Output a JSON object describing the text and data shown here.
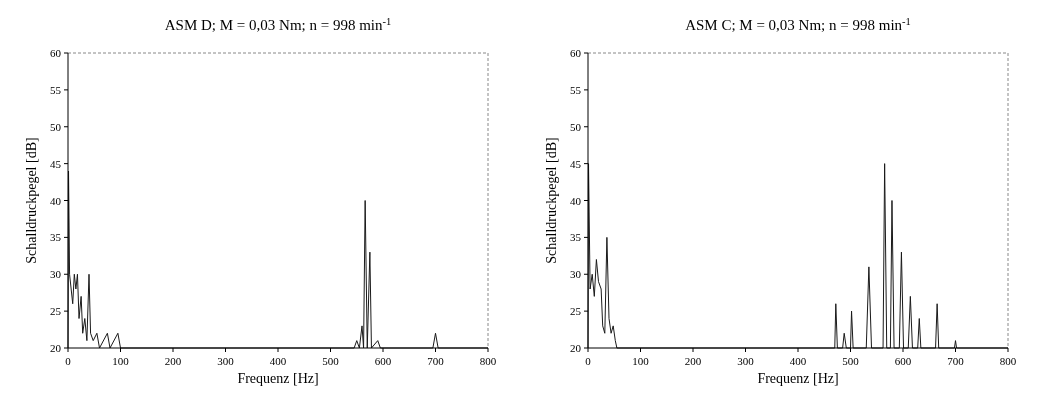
{
  "chart_data": [
    {
      "type": "line",
      "title": "ASM D; M = 0,03 Nm; n = 998 min$^{-1}$",
      "xlabel": "Frequenz [Hz]",
      "ylabel": "Schalldruckpegel [dB]",
      "xlim": [
        0,
        800
      ],
      "xticks": [
        0,
        100,
        200,
        300,
        400,
        500,
        600,
        700,
        800
      ],
      "ylim": [
        20,
        60
      ],
      "yticks": [
        20,
        25,
        30,
        35,
        40,
        45,
        50,
        55,
        60
      ],
      "grid": false,
      "marker": "none",
      "line_style": "solid",
      "series": [
        {
          "color": "#1a1a1a",
          "x": [
            0,
            1,
            3,
            6,
            9,
            12,
            15,
            18,
            21,
            25,
            28,
            32,
            36,
            40,
            43,
            48,
            55,
            60,
            75,
            80,
            95,
            100,
            545,
            550,
            555,
            560,
            563,
            566,
            570,
            575,
            578,
            590,
            595,
            695,
            700,
            705,
            800
          ],
          "values": [
            20,
            44,
            30,
            28,
            26,
            30,
            28,
            30,
            24,
            27,
            22,
            24,
            21,
            30,
            22,
            21,
            22,
            20,
            22,
            20,
            22,
            20,
            20,
            21,
            20,
            23,
            20,
            40,
            20,
            33,
            20,
            21,
            20,
            20,
            22,
            20,
            20
          ]
        }
      ]
    },
    {
      "type": "line",
      "title": "ASM C; M = 0,03 Nm; n = 998 min$^{-1}$",
      "xlabel": "Frequenz [Hz]",
      "ylabel": "Schalldruckpegel [dB]",
      "xlim": [
        0,
        800
      ],
      "xticks": [
        0,
        100,
        200,
        300,
        400,
        500,
        600,
        700,
        800
      ],
      "ylim": [
        20,
        60
      ],
      "yticks": [
        20,
        25,
        30,
        35,
        40,
        45,
        50,
        55,
        60
      ],
      "grid": false,
      "marker": "none",
      "line_style": "solid",
      "series": [
        {
          "color": "#1a1a1a",
          "x": [
            0,
            1,
            4,
            8,
            12,
            16,
            20,
            25,
            28,
            32,
            36,
            40,
            44,
            48,
            52,
            55,
            470,
            472,
            475,
            485,
            488,
            492,
            500,
            502,
            505,
            530,
            535,
            540,
            562,
            565,
            569,
            576,
            579,
            583,
            593,
            597,
            601,
            610,
            614,
            618,
            628,
            631,
            634,
            662,
            665,
            668,
            698,
            700,
            702,
            800
          ],
          "values": [
            20,
            45,
            28,
            30,
            27,
            32,
            29,
            28,
            23,
            22,
            35,
            24,
            22,
            23,
            21,
            20,
            20,
            26,
            20,
            20,
            22,
            20,
            20,
            25,
            20,
            20,
            31,
            20,
            20,
            45,
            20,
            20,
            40,
            20,
            20,
            33,
            20,
            20,
            27,
            20,
            20,
            24,
            20,
            20,
            26,
            20,
            20,
            21,
            20,
            20
          ]
        }
      ]
    }
  ]
}
